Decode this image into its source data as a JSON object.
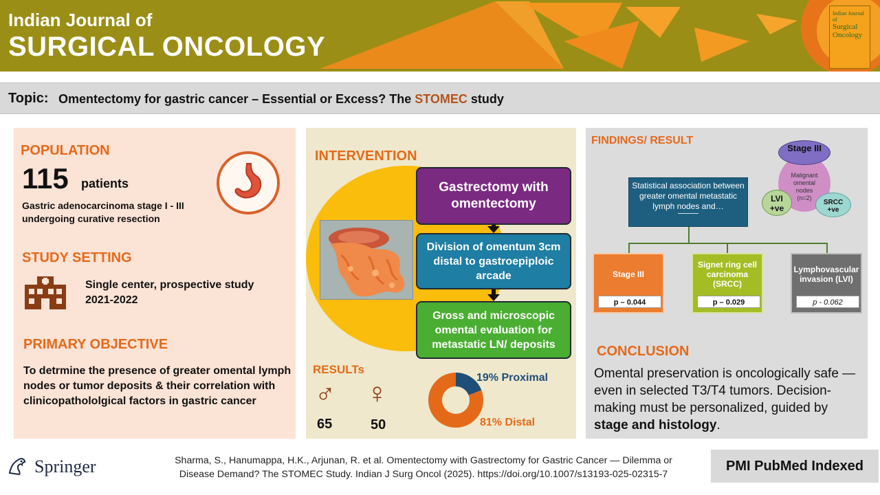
{
  "header": {
    "journal_line1": "Indian Journal of",
    "journal_line2": "SURGICAL ONCOLOGY",
    "cover_line1": "Indian Journal of",
    "cover_line2": "Surgical",
    "cover_line3": "Oncology",
    "colors": {
      "background": "#9a8e16",
      "accent": "#f08a1c"
    }
  },
  "topic": {
    "label": "Topic:",
    "text_before": "Omentectomy for gastric cancer – Essential or Excess? The ",
    "highlight": "STOMEC",
    "text_after": " study"
  },
  "population": {
    "title": "POPULATION",
    "count": "115",
    "unit": "patients",
    "description": "Gastric adenocarcinoma stage I - III undergoing curative resection",
    "icon": "stomach-icon"
  },
  "study_setting": {
    "title": "STUDY SETTING",
    "line1": "Single center,  prospective study",
    "line2": "2021-2022",
    "icon": "hospital-icon"
  },
  "objective": {
    "title": "PRIMARY OBJECTIVE",
    "text": "To detrmine the presence of greater omental lymph nodes or tumor deposits &  their correlation with clinicopathololgical factors in gastric cancer"
  },
  "intervention": {
    "title": "INTERVENTION",
    "steps": [
      "Gastrectomy with omentectomy",
      "Division of omentum 3cm distal to gastroepiploic arcade",
      "Gross and microscopic omental evaluation for metastatic LN/ deposits"
    ]
  },
  "results": {
    "title": "RESULTs",
    "male_count": "65",
    "female_count": "50",
    "proximal_pct": "19%",
    "proximal_label": "Proximal",
    "distal_pct": "81%",
    "distal_label": "Distal",
    "proximal_fraction": 0.19,
    "colors": {
      "proximal": "#1f4e79",
      "distal": "#e46a1a"
    }
  },
  "findings": {
    "title": "FINDINGS/ RESULT",
    "association_text": "Statistical association between greater omental metastatic lymph nodes and…",
    "venn": {
      "stage": "Stage III",
      "center_line1": "Malignant",
      "center_line2": "omental",
      "center_line3": "nodes",
      "center_line4": "(n=2)",
      "lvi_line1": "LVI",
      "lvi_line2": "+ve",
      "srcc_line1": "SRCC",
      "srcc_line2": "+ve"
    },
    "factors": [
      {
        "name": "Stage III",
        "p": "p – 0.044"
      },
      {
        "name": "Signet ring cell carcinoma (SRCC)",
        "p": "p – 0.029"
      },
      {
        "name": "Lymphovascular invasion (LVI)",
        "p": "p - 0.062"
      }
    ]
  },
  "conclusion": {
    "title": "CONCLUSION",
    "text_before": "Omental preservation is oncologically safe — even in selected T3/T4 tumors. Decision-making must be personalized, guided by ",
    "bold": "stage and histology",
    "text_after": "."
  },
  "footer": {
    "publisher": "Springer",
    "citation_line1": "Sharma, S., Hanumappa, H.K., Arjunan, R. et al. Omentectomy with Gastrectomy for Gastric Cancer — Dilemma or",
    "citation_line2": "Disease Demand? The STOMEC Study. Indian J Surg Oncol (2025). https://doi.org/10.1007/s13193-025-02315-7",
    "indexed": "PMI PubMed Indexed"
  }
}
